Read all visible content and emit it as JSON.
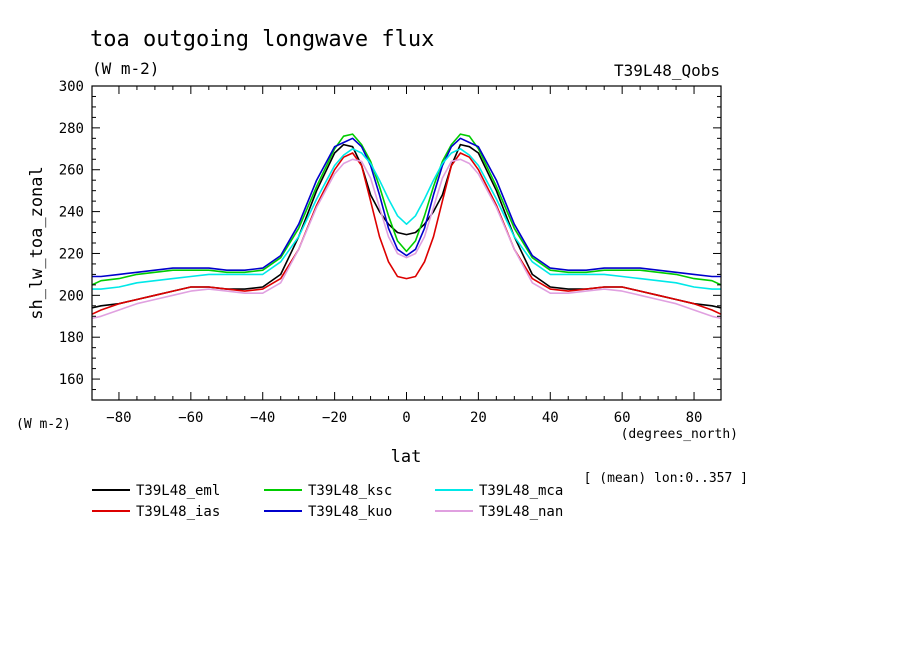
{
  "header": {
    "title": "toa outgoing longwave flux",
    "units": "(W m-2)",
    "experiment": "T39L48_Qobs"
  },
  "axes": {
    "y_units_label": "(W m-2)",
    "x_units_label": "(degrees_north)",
    "mean_note": "[ (mean) lon:0..357 ]"
  },
  "chart_data": {
    "type": "line",
    "xlabel": "lat",
    "ylabel": "sh_lw_toa_zonal",
    "xlim": [
      -87.5,
      87.5
    ],
    "ylim": [
      150,
      300
    ],
    "xticks": [
      -80,
      -60,
      -40,
      -20,
      0,
      20,
      40,
      60,
      80
    ],
    "yticks": [
      160,
      180,
      200,
      220,
      240,
      260,
      280,
      300
    ],
    "grid": false,
    "legend": "bottom",
    "x": [
      -87.5,
      -85,
      -80,
      -75,
      -70,
      -65,
      -60,
      -55,
      -50,
      -45,
      -40,
      -35,
      -30,
      -25,
      -20,
      -17.5,
      -15,
      -12.5,
      -10,
      -7.5,
      -5,
      -2.5,
      0,
      2.5,
      5,
      7.5,
      10,
      12.5,
      15,
      17.5,
      20,
      25,
      30,
      35,
      40,
      45,
      50,
      55,
      60,
      65,
      70,
      75,
      80,
      85,
      87.5
    ],
    "series": [
      {
        "name": "T39L48_eml",
        "color": "#000000",
        "values": [
          194,
          195,
          196,
          198,
          200,
          202,
          204,
          204,
          203,
          203,
          204,
          210,
          228,
          250,
          268,
          272,
          271,
          262,
          248,
          240,
          234,
          230,
          229,
          230,
          234,
          240,
          248,
          262,
          272,
          271,
          268,
          250,
          228,
          210,
          204,
          203,
          203,
          204,
          204,
          202,
          200,
          198,
          196,
          195,
          194
        ]
      },
      {
        "name": "T39L48_ias",
        "color": "#dd0000",
        "values": [
          191,
          193,
          196,
          198,
          200,
          202,
          204,
          204,
          203,
          202,
          203,
          208,
          222,
          243,
          260,
          266,
          268,
          262,
          245,
          228,
          216,
          209,
          208,
          209,
          216,
          228,
          245,
          262,
          268,
          266,
          260,
          243,
          222,
          208,
          203,
          202,
          203,
          204,
          204,
          202,
          200,
          198,
          196,
          193,
          191
        ]
      },
      {
        "name": "T39L48_ksc",
        "color": "#00cc00",
        "values": [
          205,
          207,
          208,
          210,
          211,
          212,
          212,
          212,
          211,
          211,
          212,
          218,
          232,
          252,
          270,
          276,
          277,
          272,
          264,
          252,
          238,
          226,
          221,
          226,
          238,
          252,
          264,
          272,
          277,
          276,
          270,
          252,
          232,
          218,
          212,
          211,
          211,
          212,
          212,
          212,
          211,
          210,
          208,
          207,
          205
        ]
      },
      {
        "name": "T39L48_kuo",
        "color": "#0000cc",
        "values": [
          209,
          209,
          210,
          211,
          212,
          213,
          213,
          213,
          212,
          212,
          213,
          219,
          234,
          255,
          271,
          273,
          275,
          271,
          262,
          248,
          232,
          222,
          219,
          222,
          232,
          248,
          262,
          271,
          275,
          273,
          271,
          255,
          234,
          219,
          213,
          212,
          212,
          213,
          213,
          213,
          212,
          211,
          210,
          209,
          209
        ]
      },
      {
        "name": "T39L48_mca",
        "color": "#00e8e8",
        "values": [
          203,
          203,
          204,
          206,
          207,
          208,
          209,
          210,
          210,
          210,
          210,
          216,
          228,
          246,
          262,
          267,
          270,
          268,
          263,
          255,
          246,
          238,
          234,
          238,
          246,
          255,
          263,
          268,
          270,
          267,
          262,
          246,
          228,
          216,
          210,
          210,
          210,
          210,
          209,
          208,
          207,
          206,
          204,
          203,
          203
        ]
      },
      {
        "name": "T39L48_nan",
        "color": "#e0a0e0",
        "values": [
          189,
          190,
          193,
          196,
          198,
          200,
          202,
          203,
          202,
          201,
          201,
          206,
          222,
          242,
          258,
          263,
          265,
          264,
          256,
          242,
          228,
          220,
          218,
          220,
          228,
          242,
          256,
          264,
          265,
          263,
          258,
          242,
          222,
          206,
          201,
          201,
          202,
          203,
          202,
          200,
          198,
          196,
          193,
          190,
          189
        ]
      }
    ]
  }
}
